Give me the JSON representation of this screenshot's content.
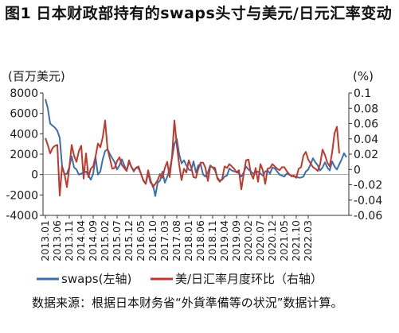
{
  "title": {
    "number": "图1",
    "text": "日本财政部持有的swaps头寸与美元/日元汇率变动"
  },
  "source_note": "数据来源：根据日本财务省“外貨準備等の状況”数据计算。",
  "chart_data": {
    "type": "line",
    "left_axis_unit": "(百万美元)",
    "right_axis_unit": "(%)",
    "ylim_left": [
      -4000,
      8000
    ],
    "ylim_right": [
      -0.06,
      0.1
    ],
    "left_ticks": [
      "8000",
      "6000",
      "4000",
      "2000",
      "0",
      "-2000",
      "-4000"
    ],
    "right_ticks": [
      "0.1",
      "0.08",
      "0.06",
      "0.04",
      "0.02",
      "0",
      "-0.02",
      "-0.04",
      "-0.06"
    ],
    "x_ticks": [
      "2013.01",
      "2013.06",
      "2013.11",
      "2014.04",
      "2014.09",
      "2015.02",
      "2015.07",
      "2015.12",
      "2016.05",
      "2016.10",
      "2017.03",
      "2017.08",
      "2018.01",
      "2018.06",
      "2018.11",
      "2019.04",
      "2019.09",
      "2020.02",
      "2020.07",
      "2020.12",
      "2021.05",
      "2021.10",
      "2022.03"
    ],
    "x_range": [
      "2013-01",
      "2022-05"
    ],
    "legend_position": "bottom",
    "grid": false,
    "colors": {
      "swaps": "#3a6fb0",
      "fx": "#c0392b",
      "axis": "#333333"
    },
    "series": [
      {
        "name": "swaps(左轴)",
        "axis": "left",
        "color": "#3a6fb0",
        "values": [
          7400,
          6500,
          5000,
          4800,
          4600,
          4300,
          3600,
          800,
          0,
          100,
          700,
          1800,
          700,
          500,
          0,
          100,
          200,
          300,
          -100,
          -500,
          100,
          1700,
          0,
          300,
          1500,
          2300,
          2500,
          2000,
          1600,
          1200,
          500,
          900,
          1500,
          900,
          400,
          1200,
          800,
          300,
          700,
          600,
          100,
          -600,
          -900,
          100,
          -800,
          -1000,
          -2100,
          -800,
          -600,
          300,
          -800,
          -200,
          500,
          1600,
          3000,
          3500,
          2000,
          1100,
          1400,
          900,
          500,
          400,
          1300,
          200,
          900,
          1000,
          0,
          -200,
          200,
          900,
          700,
          400,
          -300,
          -600,
          -500,
          -200,
          -100,
          600,
          400,
          300,
          300,
          100,
          -200,
          200,
          800,
          500,
          300,
          100,
          200,
          300,
          100,
          -100,
          300,
          400,
          100,
          700,
          600,
          300,
          0,
          -100,
          -200,
          100,
          0,
          -100,
          -200,
          -200,
          -300,
          -300,
          -200,
          300,
          500,
          1000,
          1600,
          1200,
          900,
          400,
          700,
          1200,
          700,
          400,
          1300,
          800,
          500,
          1000,
          1500,
          2100,
          1700
        ]
      },
      {
        "name": "美/日汇率月度环比（右轴）",
        "axis": "right",
        "color": "#c0392b",
        "values": [
          0.041,
          0.032,
          0.021,
          0.028,
          0.031,
          0.032,
          -0.034,
          0.004,
          -0.006,
          -0.023,
          0.002,
          0.032,
          0.018,
          0.01,
          0.024,
          0.031,
          -0.012,
          0.021,
          -0.01,
          0.001,
          0.004,
          0.017,
          0.034,
          0.029,
          0.042,
          0.064,
          0.027,
          0.014,
          0.001,
          0.002,
          0.011,
          0.016,
          0.006,
          0.002,
          -0.002,
          0.012,
          0.003,
          -0.001,
          0.002,
          0.004,
          -0.006,
          -0.014,
          -0.019,
          -0.001,
          -0.014,
          -0.023,
          -0.019,
          -0.014,
          -0.006,
          -0.011,
          0.002,
          0.01,
          -0.01,
          0.017,
          0.064,
          0.032,
          0.006,
          -0.014,
          0.001,
          -0.004,
          0.012,
          0.003,
          -0.01,
          -0.011,
          0.001,
          0.009,
          0.009,
          0.002,
          -0.015,
          0.004,
          0.003,
          0.002,
          -0.012,
          -0.016,
          -0.012,
          0.004,
          0.002,
          0.007,
          0.004,
          0.001,
          -0.004,
          -0.001,
          -0.026,
          -0.006,
          0.012,
          0.013,
          -0.005,
          -0.012,
          0.002,
          -0.016,
          0.007,
          -0.001,
          -0.019,
          0.001,
          0.002,
          0.007,
          0.004,
          0.001,
          -0.001,
          0.003,
          0.003,
          -0.002,
          -0.006,
          -0.009,
          -0.008,
          -0.011,
          0.001,
          0.003,
          0.018,
          0.023,
          0.013,
          0.008,
          0.003,
          0.001,
          -0.002,
          0.007,
          0.026,
          0.019,
          0.009,
          0.004,
          0.022,
          0.047,
          0.056,
          0.021
        ]
      }
    ]
  }
}
